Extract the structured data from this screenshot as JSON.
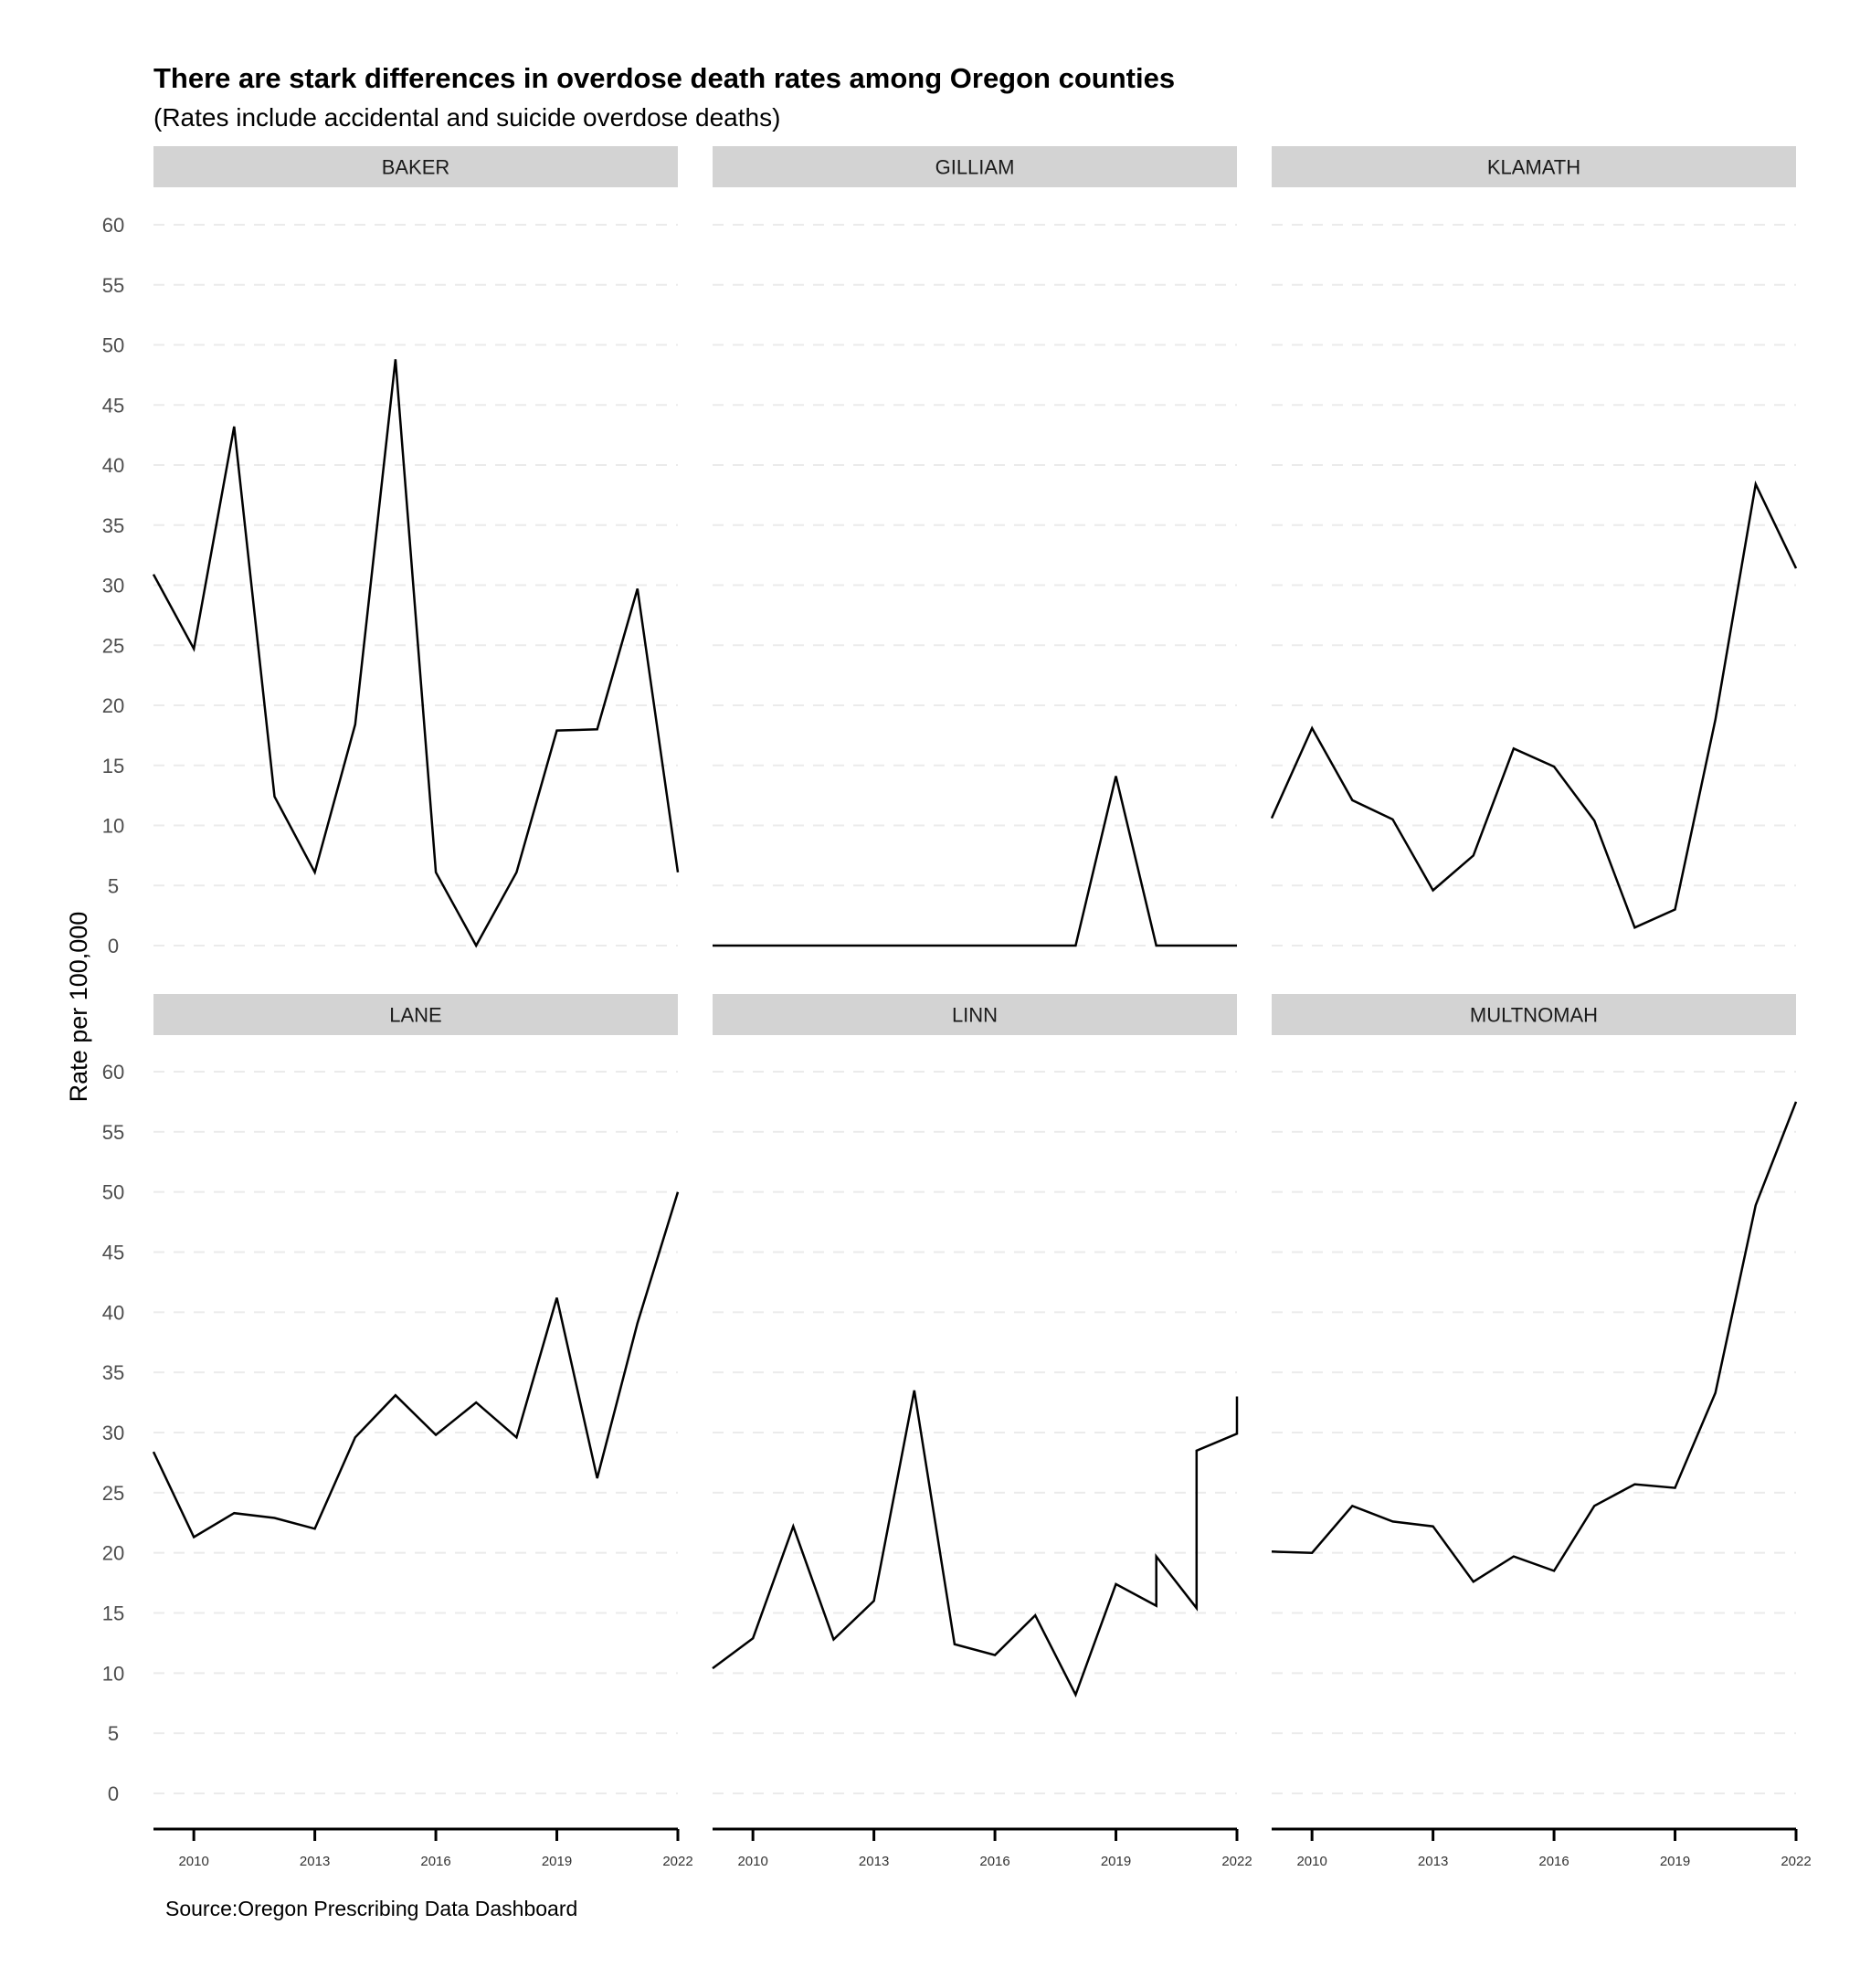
{
  "chart_data": {
    "type": "line",
    "title": "There are stark differences in overdose death rates among Oregon counties",
    "subtitle": "(Rates include accidental and suicide overdose deaths)",
    "caption": "Source:Oregon Prescribing Data Dashboard",
    "xlabel": "",
    "ylabel": "Rate per 100,000",
    "ylim": [
      0,
      60
    ],
    "yticks": [
      0,
      5,
      10,
      15,
      20,
      25,
      30,
      35,
      40,
      45,
      50,
      55,
      60
    ],
    "xlim": [
      2009,
      2022
    ],
    "xticks": [
      2010,
      2013,
      2016,
      2019,
      2022
    ],
    "grid": "horizontal dashed",
    "facets": [
      {
        "name": "BAKER",
        "x": [
          2009,
          2010,
          2011,
          2012,
          2013,
          2014,
          2015,
          2016,
          2017,
          2018,
          2019,
          2020,
          2021,
          2022
        ],
        "y": [
          30.9,
          24.7,
          43.2,
          12.4,
          6.1,
          18.4,
          48.8,
          6.1,
          0,
          6.1,
          17.9,
          18.0,
          29.7,
          6.1
        ]
      },
      {
        "name": "GILLIAM",
        "x": [
          2009,
          2010,
          2011,
          2012,
          2013,
          2014,
          2015,
          2016,
          2017,
          2018,
          2019,
          2020,
          2021,
          2022
        ],
        "y": [
          0,
          0,
          0,
          0,
          0,
          0,
          0,
          0,
          0,
          0,
          14.1,
          0,
          0,
          0
        ]
      },
      {
        "name": "KLAMATH",
        "x": [
          2009,
          2010,
          2011,
          2012,
          2013,
          2014,
          2015,
          2016,
          2017,
          2018,
          2019,
          2020,
          2021,
          2022
        ],
        "y": [
          10.6,
          18.1,
          12.1,
          10.5,
          4.6,
          7.5,
          16.4,
          14.9,
          10.4,
          1.5,
          3.0,
          18.8,
          38.4,
          31.4
        ]
      },
      {
        "name": "LANE",
        "x": [
          2009,
          2010,
          2011,
          2012,
          2013,
          2014,
          2015,
          2016,
          2017,
          2018,
          2019,
          2020,
          2021,
          2022
        ],
        "y": [
          28.4,
          21.3,
          23.3,
          22.9,
          22.0,
          29.6,
          33.1,
          29.8,
          32.5,
          29.6,
          41.2,
          26.2,
          39.1,
          50.0
        ]
      },
      {
        "name": "LINN",
        "x": [
          2009,
          2010,
          2011,
          2012,
          2013,
          2014,
          2015,
          2016,
          2017,
          2018,
          2019,
          2020,
          2020,
          2021,
          2021,
          2022,
          2022
        ],
        "y": [
          10.4,
          12.9,
          22.2,
          12.8,
          16.0,
          33.5,
          12.4,
          11.5,
          14.8,
          8.2,
          17.4,
          15.6,
          19.7,
          15.4,
          28.5,
          29.9,
          33.0
        ]
      },
      {
        "name": "MULTNOMAH",
        "x": [
          2009,
          2010,
          2011,
          2012,
          2013,
          2014,
          2015,
          2016,
          2017,
          2018,
          2019,
          2020,
          2021,
          2022
        ],
        "y": [
          20.1,
          20.0,
          23.9,
          22.6,
          22.2,
          17.6,
          19.7,
          18.5,
          23.9,
          25.7,
          25.4,
          33.3,
          48.9,
          57.5
        ]
      }
    ]
  }
}
